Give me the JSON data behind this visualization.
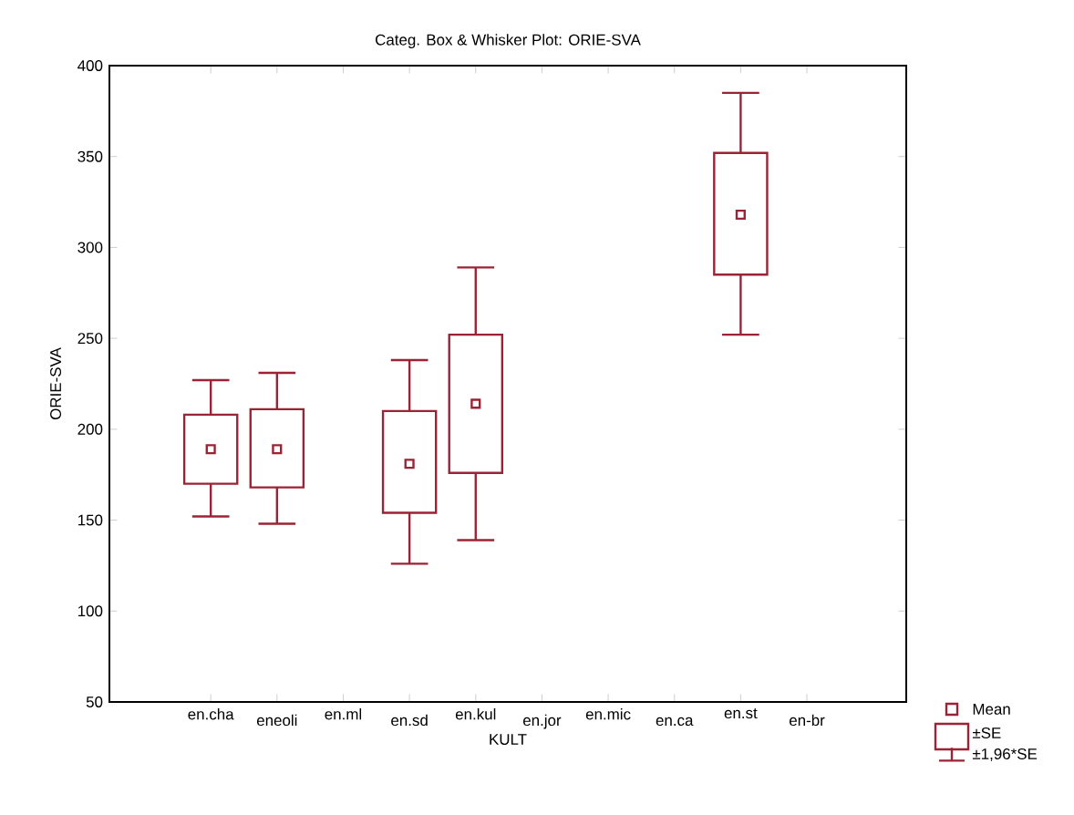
{
  "chart_data": {
    "type": "box",
    "title": "Categ. Box & Whisker Plot: ORIE-SVA",
    "xlabel": "KULT",
    "ylabel": "ORIE-SVA",
    "categories": [
      "en.cha",
      "eneoli",
      "en.ml",
      "en.sd",
      "en.kul",
      "en.jor",
      "en.mic",
      "en.ca",
      "en.st",
      "en-br"
    ],
    "color": "#9b2335",
    "boxes": [
      {
        "low": 152,
        "q1": 170,
        "q3": 208,
        "high": 227,
        "mean": 189
      },
      {
        "low": 148,
        "q1": 168,
        "q3": 211,
        "high": 231,
        "mean": 189
      },
      null,
      {
        "low": 126,
        "q1": 154,
        "q3": 210,
        "high": 238,
        "mean": 181
      },
      {
        "low": 139,
        "q1": 176,
        "q3": 252,
        "high": 289,
        "mean": 214
      },
      null,
      null,
      null,
      {
        "low": 252,
        "q1": 285,
        "q3": 352,
        "high": 385,
        "mean": 318
      },
      null
    ],
    "ylim": [
      50,
      400
    ],
    "yticks": [
      50,
      100,
      150,
      200,
      250,
      300,
      350,
      400
    ],
    "grid": false,
    "annotations": [
      "Mean",
      "±SE",
      "±1,96*SE"
    ]
  }
}
